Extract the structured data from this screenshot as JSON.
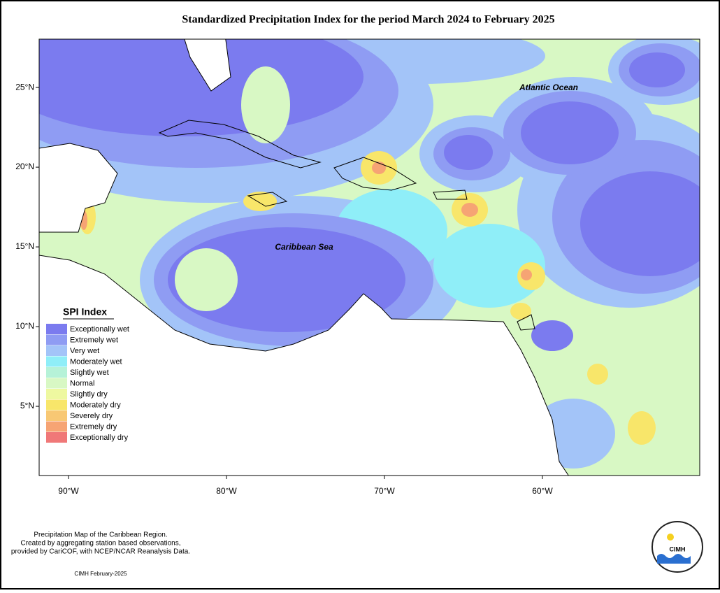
{
  "title": "Standardized Precipitation Index for the period March 2024 to February 2025",
  "map": {
    "xlim": [
      -91.86,
      -50.04
    ],
    "ylim": [
      0.66,
      28.03
    ],
    "lat_ticks": [
      {
        "value": 25,
        "label": "25°N"
      },
      {
        "value": 20,
        "label": "20°N"
      },
      {
        "value": 15,
        "label": "15°N"
      },
      {
        "value": 10,
        "label": "10°N"
      },
      {
        "value": 5,
        "label": "5°N"
      }
    ],
    "lon_ticks": [
      {
        "value": -90,
        "label": "90°W"
      },
      {
        "value": -80,
        "label": "80°W"
      },
      {
        "value": -70,
        "label": "70°W"
      },
      {
        "value": -60,
        "label": "60°W"
      }
    ],
    "labels": [
      "Atlantic Ocean",
      "Caribbean Sea"
    ]
  },
  "legend": {
    "title": "SPI Index",
    "items": [
      {
        "name": "Exceptionally wet",
        "color": "#7b7bef"
      },
      {
        "name": "Extremely wet",
        "color": "#8f9cf3"
      },
      {
        "name": "Very wet",
        "color": "#a3c4f8"
      },
      {
        "name": "Moderately wet",
        "color": "#8feef8"
      },
      {
        "name": "Slightly wet",
        "color": "#b6f2d8"
      },
      {
        "name": "Normal",
        "color": "#d8f8c4"
      },
      {
        "name": "Slightly dry",
        "color": "#eef8a0"
      },
      {
        "name": "Moderately dry",
        "color": "#f8e66a"
      },
      {
        "name": "Severely dry",
        "color": "#f8c874"
      },
      {
        "name": "Extremely dry",
        "color": "#f6a474"
      },
      {
        "name": "Exceptionally dry",
        "color": "#f07878"
      }
    ]
  },
  "footer": {
    "notes": [
      "Precipitation Map of the Caribbean Region.",
      "Created by aggregating station based observations,",
      "provided by CariCOF, with NCEP/NCAR Reanalysis Data."
    ],
    "credit": "CIMH February-2025"
  },
  "logo": {
    "text": "CIMH"
  }
}
